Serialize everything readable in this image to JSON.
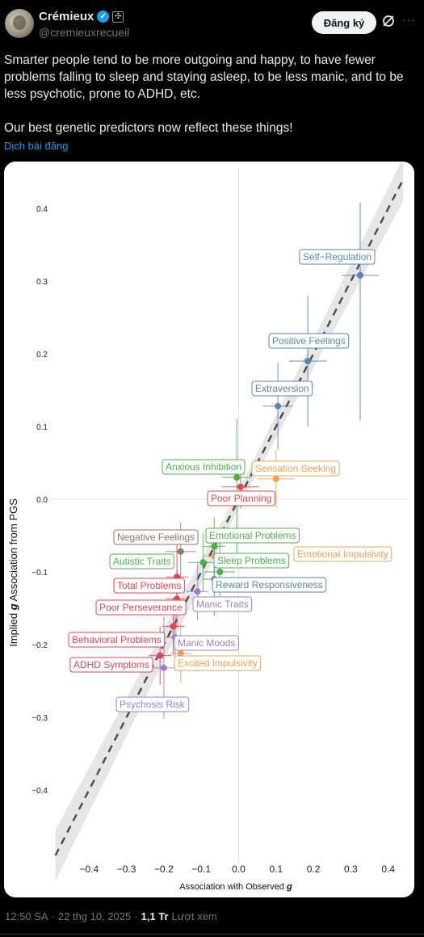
{
  "author": {
    "name": "Crémieux",
    "handle": "@cremieuxrecueil",
    "verified_mark": "✓",
    "affiliation_mark": "✣"
  },
  "actions": {
    "follow_label": "Đăng ký",
    "grok_icon": "grok-icon",
    "more_icon": "more-icon",
    "more_glyph": "···"
  },
  "post": {
    "paragraph1": "Smarter people tend to be more outgoing and happy, to have fewer problems falling to sleep and staying asleep, to be less manic, and to be less psychotic, prone to ADHD, etc.",
    "paragraph2": "Our best genetic predictors now reflect these things!",
    "translate_label": "Dịch bài đăng"
  },
  "meta": {
    "time": "12:50 SA",
    "sep1": "·",
    "date": "22 thg 10, 2025",
    "sep2": "·",
    "views": "1,1 Tr",
    "views_label": "Lượt xem"
  },
  "colors": {
    "blue": "#5b84b1",
    "green": "#4daf4a",
    "red": "#e04455",
    "orange": "#f0a050",
    "purple": "#9a7fc7",
    "brown": "#8c7a6b"
  },
  "chart_data": {
    "type": "scatter",
    "xlabel_prefix": "Association with Observed ",
    "xlabel_g": "g",
    "ylabel_prefix": "Implied ",
    "ylabel_g": "g",
    "ylabel_suffix": " Association from PGS",
    "xlim": [
      -0.5,
      0.45
    ],
    "ylim": [
      -0.5,
      0.46
    ],
    "xticks": [
      -0.4,
      -0.3,
      -0.2,
      -0.1,
      0.0,
      0.1,
      0.2,
      0.3,
      0.4
    ],
    "xtick_labels": [
      "−0.4",
      "−0.3",
      "−0.2",
      "−0.1",
      "0.0",
      "0.1",
      "0.2",
      "0.3",
      "0.4"
    ],
    "yticks": [
      0.4,
      0.3,
      0.2,
      0.1,
      0.0,
      -0.1,
      -0.2,
      -0.3,
      -0.4
    ],
    "ytick_labels": [
      "0.4",
      "0.3",
      "0.2",
      "0.1",
      "0.0",
      "−0.1",
      "−0.2",
      "−0.3",
      "−0.4"
    ],
    "reference_line": "y = x (dashed) with shaded confidence band",
    "points": [
      {
        "label": "Self−Regulation",
        "x": 0.325,
        "y": 0.308,
        "xerr": 0.05,
        "yerr_lo": 0.2,
        "yerr_hi": 0.1,
        "color": "blue"
      },
      {
        "label": "Positive Feelings",
        "x": 0.185,
        "y": 0.19,
        "xerr": 0.05,
        "yerr_lo": 0.09,
        "yerr_hi": 0.09,
        "color": "blue"
      },
      {
        "label": "Extraversion",
        "x": 0.105,
        "y": 0.128,
        "xerr": 0.04,
        "yerr_lo": 0.06,
        "yerr_hi": 0.06,
        "color": "blue"
      },
      {
        "label": "Anxious Inhibition",
        "x": -0.005,
        "y": 0.03,
        "xerr": 0.04,
        "yerr_lo": 0.11,
        "yerr_hi": 0.08,
        "color": "green"
      },
      {
        "label": "Sensation Seeking",
        "x": 0.1,
        "y": 0.028,
        "xerr": 0.05,
        "yerr_lo": 0.04,
        "yerr_hi": 0.04,
        "color": "orange"
      },
      {
        "label": "Poor Planning",
        "x": 0.005,
        "y": 0.017,
        "xerr": 0.05,
        "yerr_lo": 0.03,
        "yerr_hi": 0.03,
        "color": "red"
      },
      {
        "label": "Emotional Problems",
        "x": -0.065,
        "y": -0.065,
        "xerr": 0.03,
        "yerr_lo": 0.04,
        "yerr_hi": 0.04,
        "color": "green"
      },
      {
        "label": "Emotional Impulsivity",
        "x": -0.065,
        "y": -0.078,
        "xerr": 0.03,
        "yerr_lo": 0.05,
        "yerr_hi": 0.05,
        "color": "orange"
      },
      {
        "label": "Negative Feelings",
        "x": -0.155,
        "y": -0.072,
        "xerr": 0.04,
        "yerr_lo": 0.04,
        "yerr_hi": 0.04,
        "color": "brown"
      },
      {
        "label": "Autistic Traits",
        "x": -0.095,
        "y": -0.087,
        "xerr": 0.04,
        "yerr_lo": 0.04,
        "yerr_hi": 0.04,
        "color": "green"
      },
      {
        "label": "Sleep Problems",
        "x": -0.05,
        "y": -0.1,
        "xerr": 0.04,
        "yerr_lo": 0.04,
        "yerr_hi": 0.04,
        "color": "green"
      },
      {
        "label": "Total Problems",
        "x": -0.165,
        "y": -0.107,
        "xerr": 0.03,
        "yerr_lo": 0.05,
        "yerr_hi": 0.05,
        "color": "red"
      },
      {
        "label": "Reward Responsiveness",
        "x": -0.065,
        "y": -0.11,
        "xerr": 0.03,
        "yerr_lo": 0.05,
        "yerr_hi": 0.05,
        "color": "blue"
      },
      {
        "label": "Manic Traits",
        "x": -0.11,
        "y": -0.127,
        "xerr": 0.03,
        "yerr_lo": 0.04,
        "yerr_hi": 0.04,
        "color": "purple"
      },
      {
        "label": "Poor Perseverance",
        "x": -0.165,
        "y": -0.137,
        "xerr": 0.03,
        "yerr_lo": 0.04,
        "yerr_hi": 0.04,
        "color": "red"
      },
      {
        "label": "Behavioral Problems",
        "x": -0.175,
        "y": -0.175,
        "xerr": 0.03,
        "yerr_lo": 0.04,
        "yerr_hi": 0.04,
        "color": "red"
      },
      {
        "label": "Manic Moods",
        "x": -0.17,
        "y": -0.19,
        "xerr": 0.03,
        "yerr_lo": 0.04,
        "yerr_hi": 0.04,
        "color": "purple"
      },
      {
        "label": "Excited Impulsivity",
        "x": -0.155,
        "y": -0.212,
        "xerr": 0.03,
        "yerr_lo": 0.04,
        "yerr_hi": 0.04,
        "color": "orange"
      },
      {
        "label": "ADHD Symptoms",
        "x": -0.21,
        "y": -0.215,
        "xerr": 0.03,
        "yerr_lo": 0.04,
        "yerr_hi": 0.04,
        "color": "red"
      },
      {
        "label": "Psychosis Risk",
        "x": -0.2,
        "y": -0.232,
        "xerr": 0.03,
        "yerr_lo": 0.07,
        "yerr_hi": 0.07,
        "color": "purple"
      }
    ]
  }
}
